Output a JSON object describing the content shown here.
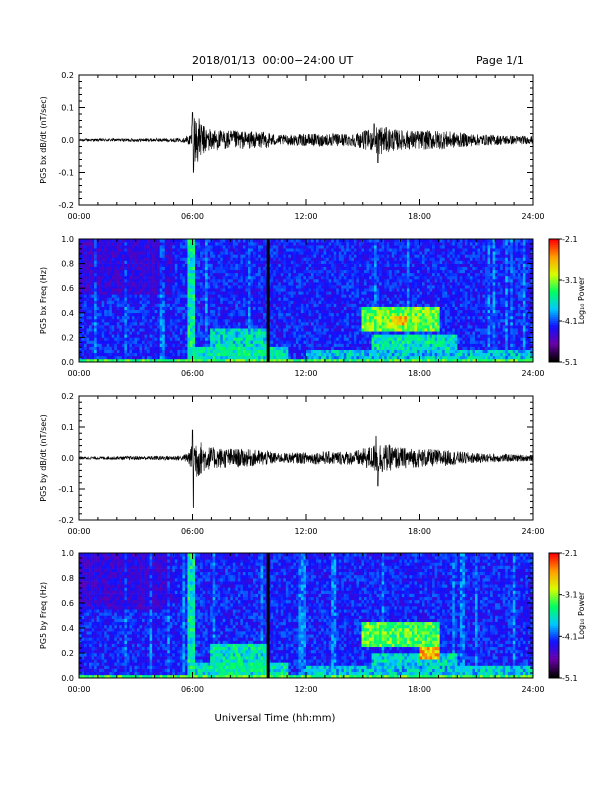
{
  "header": {
    "title": "2018/01/13  00:00−24:00 UT",
    "page": "Page 1/1"
  },
  "xlabel": "Universal Time (hh:mm)",
  "colorbar": {
    "ticks": [
      "-2.1",
      "-3.1",
      "-4.1",
      "-5.1"
    ],
    "label": "Log₁₀ Power",
    "range": [
      -5.1,
      -2.1
    ],
    "colors": [
      "#000000",
      "#6a00a8",
      "#1010ff",
      "#00c8ff",
      "#00ff60",
      "#d8ff00",
      "#ffa000",
      "#ff0000"
    ]
  },
  "chart_data": [
    {
      "type": "line",
      "ylabel": "PG5 bx dB/dt (nT/sec)",
      "x_ticks": [
        "00:00",
        "06:00",
        "12:00",
        "18:00",
        "24:00"
      ],
      "y_ticks": [
        "0.2",
        "0.1",
        "0.0",
        "-0.1",
        "-0.2"
      ],
      "xlim": [
        0,
        24
      ],
      "ylim": [
        -0.2,
        0.2
      ],
      "series": [
        {
          "envelope": [
            [
              0,
              0.004
            ],
            [
              5.5,
              0.006
            ],
            [
              5.9,
              0.02
            ],
            [
              6.0,
              0.095
            ],
            [
              6.2,
              0.08
            ],
            [
              6.6,
              0.045
            ],
            [
              7.0,
              0.035
            ],
            [
              7.5,
              0.03
            ],
            [
              8.0,
              0.03
            ],
            [
              9.0,
              0.027
            ],
            [
              10.0,
              0.025
            ],
            [
              10.5,
              0.015
            ],
            [
              11.5,
              0.018
            ],
            [
              12.5,
              0.02
            ],
            [
              13.5,
              0.02
            ],
            [
              14.5,
              0.02
            ],
            [
              15.5,
              0.035
            ],
            [
              15.8,
              0.05
            ],
            [
              16.2,
              0.04
            ],
            [
              17.0,
              0.03
            ],
            [
              18.0,
              0.03
            ],
            [
              19.0,
              0.03
            ],
            [
              20.0,
              0.024
            ],
            [
              21.0,
              0.018
            ],
            [
              24.0,
              0.012
            ]
          ],
          "spikes": [
            [
              6.0,
              0.085,
              0
            ],
            [
              6.05,
              -0.1,
              0
            ],
            [
              15.6,
              0.05,
              0
            ],
            [
              15.8,
              -0.07,
              0
            ]
          ]
        }
      ]
    },
    {
      "type": "heatmap",
      "ylabel": "PG5 bx Freq (Hz)",
      "x_ticks": [
        "00:00",
        "06:00",
        "12:00",
        "18:00",
        "24:00"
      ],
      "y_ticks": [
        "1.0",
        "0.8",
        "0.6",
        "0.4",
        "0.2",
        "0.0"
      ],
      "xlim": [
        0,
        24
      ],
      "ylim": [
        0,
        1
      ],
      "data_gap_at": 10,
      "features": [
        {
          "t0": 5.8,
          "t1": 6.1,
          "f0": 0,
          "f1": 1.0,
          "level": 0.62
        },
        {
          "t0": 6.0,
          "t1": 11.0,
          "f0": 0,
          "f1": 0.12,
          "level": 0.6
        },
        {
          "t0": 7.0,
          "t1": 10.0,
          "f0": 0.05,
          "f1": 0.28,
          "level": 0.58
        },
        {
          "t0": 15.0,
          "t1": 19.0,
          "f0": 0.25,
          "f1": 0.45,
          "level": 0.75
        },
        {
          "t0": 16.5,
          "t1": 17.3,
          "f0": 0.3,
          "f1": 0.38,
          "level": 0.92
        },
        {
          "t0": 15.5,
          "t1": 20.0,
          "f0": 0.1,
          "f1": 0.22,
          "level": 0.6
        },
        {
          "t0": 12.0,
          "t1": 24.0,
          "f0": 0,
          "f1": 0.1,
          "level": 0.55
        }
      ]
    },
    {
      "type": "line",
      "ylabel": "PG5 by dB/dt (nT/sec)",
      "x_ticks": [
        "00:00",
        "06:00",
        "12:00",
        "18:00",
        "24:00"
      ],
      "y_ticks": [
        "0.2",
        "0.1",
        "0.0",
        "-0.1",
        "-0.2"
      ],
      "xlim": [
        0,
        24
      ],
      "ylim": [
        -0.2,
        0.2
      ],
      "series": [
        {
          "envelope": [
            [
              0,
              0.004
            ],
            [
              5.5,
              0.008
            ],
            [
              5.9,
              0.03
            ],
            [
              6.0,
              0.09
            ],
            [
              6.2,
              0.07
            ],
            [
              6.6,
              0.045
            ],
            [
              7.0,
              0.035
            ],
            [
              8.0,
              0.032
            ],
            [
              9.0,
              0.028
            ],
            [
              10.0,
              0.024
            ],
            [
              10.5,
              0.016
            ],
            [
              11.5,
              0.018
            ],
            [
              12.5,
              0.02
            ],
            [
              13.5,
              0.022
            ],
            [
              14.5,
              0.022
            ],
            [
              15.5,
              0.04
            ],
            [
              15.8,
              0.055
            ],
            [
              16.2,
              0.045
            ],
            [
              17.0,
              0.035
            ],
            [
              18.0,
              0.03
            ],
            [
              19.0,
              0.028
            ],
            [
              20.0,
              0.022
            ],
            [
              21.0,
              0.016
            ],
            [
              24.0,
              0.01
            ]
          ],
          "spikes": [
            [
              6.0,
              0.09,
              0
            ],
            [
              6.05,
              -0.16,
              0
            ],
            [
              15.7,
              0.07,
              0
            ],
            [
              15.8,
              -0.09,
              0
            ]
          ]
        }
      ]
    },
    {
      "type": "heatmap",
      "ylabel": "PG5 by Freq (Hz)",
      "x_ticks": [
        "00:00",
        "06:00",
        "12:00",
        "18:00",
        "24:00"
      ],
      "y_ticks": [
        "1.0",
        "0.8",
        "0.6",
        "0.4",
        "0.2",
        "0.0"
      ],
      "xlim": [
        0,
        24
      ],
      "ylim": [
        0,
        1
      ],
      "data_gap_at": 10,
      "features": [
        {
          "t0": 5.8,
          "t1": 6.1,
          "f0": 0,
          "f1": 1.0,
          "level": 0.62
        },
        {
          "t0": 6.0,
          "t1": 11.0,
          "f0": 0,
          "f1": 0.12,
          "level": 0.6
        },
        {
          "t0": 7.0,
          "t1": 10.0,
          "f0": 0.05,
          "f1": 0.28,
          "level": 0.6
        },
        {
          "t0": 15.0,
          "t1": 19.0,
          "f0": 0.25,
          "f1": 0.45,
          "level": 0.72
        },
        {
          "t0": 18.0,
          "t1": 19.0,
          "f0": 0.15,
          "f1": 0.25,
          "level": 0.92
        },
        {
          "t0": 15.5,
          "t1": 20.0,
          "f0": 0.1,
          "f1": 0.2,
          "level": 0.58
        },
        {
          "t0": 12.0,
          "t1": 24.0,
          "f0": 0,
          "f1": 0.1,
          "level": 0.55
        }
      ]
    }
  ]
}
